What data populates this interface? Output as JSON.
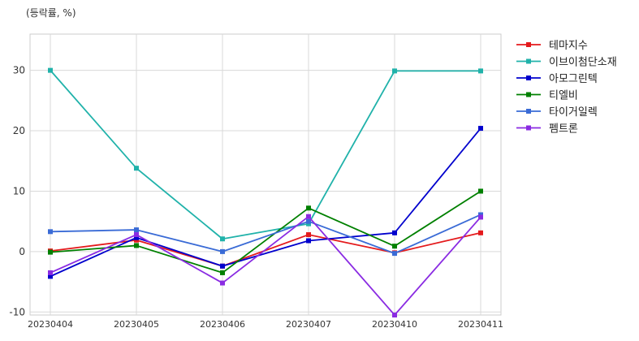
{
  "chart_data": {
    "type": "line",
    "unit_label": "(등락률, %)",
    "categories": [
      "20230404",
      "20230405",
      "20230406",
      "20230407",
      "20230410",
      "20230411"
    ],
    "ylim": [
      -10.5,
      36
    ],
    "yticks": [
      -10,
      0,
      10,
      20,
      30
    ],
    "grid": true,
    "legend_position": "right",
    "series": [
      {
        "name": "테마지수",
        "color": "#e41a1c",
        "values": [
          0.1,
          1.9,
          -2.4,
          2.8,
          -0.2,
          3.1
        ]
      },
      {
        "name": "이브이첨단소재",
        "color": "#20b2aa",
        "values": [
          30.0,
          13.8,
          2.1,
          4.6,
          29.9,
          29.9
        ]
      },
      {
        "name": "아모그린텍",
        "color": "#0000cd",
        "values": [
          -4.1,
          2.3,
          -2.4,
          1.8,
          3.1,
          20.4
        ]
      },
      {
        "name": "티엘비",
        "color": "#008000",
        "values": [
          -0.1,
          1.0,
          -3.5,
          7.2,
          0.9,
          10.0
        ]
      },
      {
        "name": "타이거일렉",
        "color": "#3a6bd6",
        "values": [
          3.3,
          3.6,
          0.0,
          5.0,
          -0.3,
          6.1
        ]
      },
      {
        "name": "펨트론",
        "color": "#8a2be2",
        "values": [
          -3.5,
          2.8,
          -5.2,
          5.8,
          -10.5,
          5.7
        ]
      }
    ]
  }
}
